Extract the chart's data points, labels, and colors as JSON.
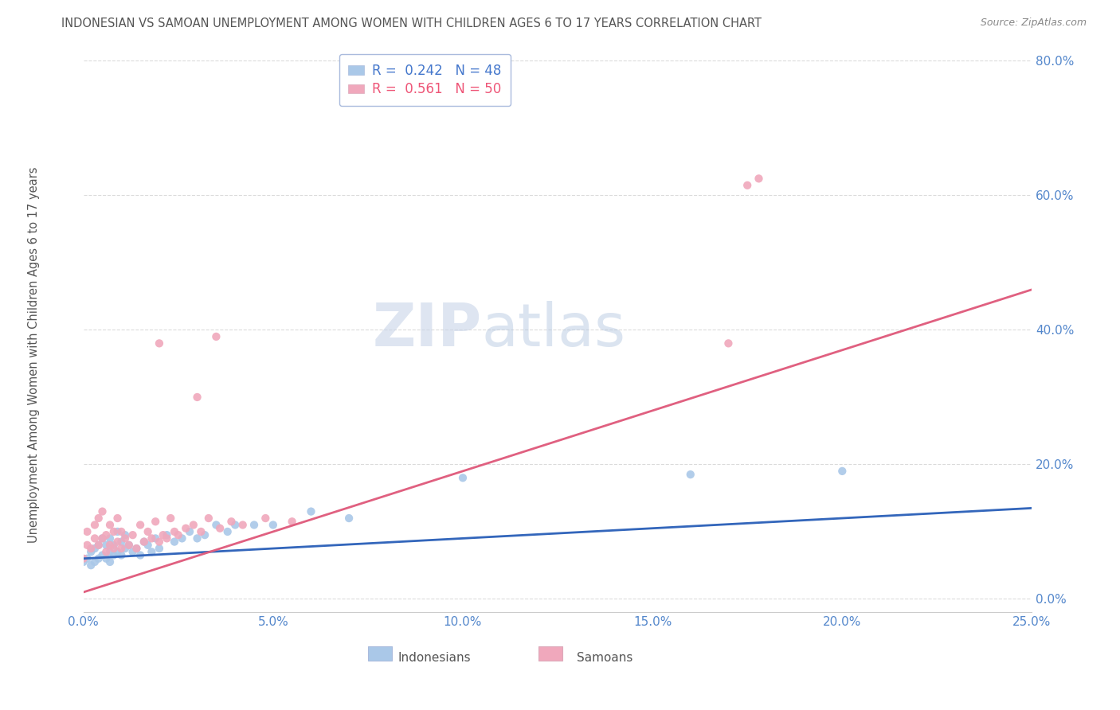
{
  "title": "INDONESIAN VS SAMOAN UNEMPLOYMENT AMONG WOMEN WITH CHILDREN AGES 6 TO 17 YEARS CORRELATION CHART",
  "source": "Source: ZipAtlas.com",
  "ylabel": "Unemployment Among Women with Children Ages 6 to 17 years",
  "xlim": [
    0.0,
    0.25
  ],
  "ylim": [
    -0.02,
    0.82
  ],
  "xticks": [
    0.0,
    0.05,
    0.1,
    0.15,
    0.2,
    0.25
  ],
  "xticklabels": [
    "0.0%",
    "5.0%",
    "10.0%",
    "15.0%",
    "20.0%",
    "25.0%"
  ],
  "yticks": [
    0.0,
    0.2,
    0.4,
    0.6,
    0.8
  ],
  "yticklabels": [
    "0.0%",
    "20.0%",
    "40.0%",
    "60.0%",
    "80.0%"
  ],
  "R_indonesian": 0.242,
  "N_indonesian": 48,
  "R_samoan": 0.561,
  "N_samoan": 50,
  "indonesian_color": "#aac8e8",
  "samoan_color": "#f0a8bc",
  "indonesian_line_color": "#3366bb",
  "samoan_line_color": "#e06080",
  "legend_label_indonesian": "Indonesians",
  "legend_label_samoan": "Samoans",
  "watermark_zip": "ZIP",
  "watermark_atlas": "atlas",
  "background_color": "#ffffff",
  "title_color": "#555555",
  "axis_tick_color": "#5588cc",
  "indonesian_x": [
    0.0,
    0.001,
    0.002,
    0.002,
    0.003,
    0.003,
    0.004,
    0.004,
    0.005,
    0.005,
    0.006,
    0.006,
    0.007,
    0.007,
    0.007,
    0.008,
    0.008,
    0.009,
    0.009,
    0.01,
    0.01,
    0.011,
    0.011,
    0.012,
    0.013,
    0.014,
    0.015,
    0.016,
    0.017,
    0.018,
    0.019,
    0.02,
    0.022,
    0.024,
    0.026,
    0.028,
    0.03,
    0.032,
    0.035,
    0.038,
    0.04,
    0.045,
    0.05,
    0.06,
    0.07,
    0.1,
    0.16,
    0.2
  ],
  "indonesian_y": [
    0.055,
    0.06,
    0.05,
    0.07,
    0.055,
    0.075,
    0.06,
    0.08,
    0.065,
    0.09,
    0.06,
    0.08,
    0.07,
    0.055,
    0.09,
    0.065,
    0.08,
    0.07,
    0.1,
    0.065,
    0.085,
    0.075,
    0.095,
    0.08,
    0.07,
    0.075,
    0.065,
    0.085,
    0.08,
    0.07,
    0.09,
    0.075,
    0.095,
    0.085,
    0.09,
    0.1,
    0.09,
    0.095,
    0.11,
    0.1,
    0.11,
    0.11,
    0.11,
    0.13,
    0.12,
    0.18,
    0.185,
    0.19
  ],
  "samoan_x": [
    0.0,
    0.001,
    0.001,
    0.002,
    0.003,
    0.003,
    0.004,
    0.004,
    0.005,
    0.005,
    0.006,
    0.006,
    0.007,
    0.007,
    0.008,
    0.008,
    0.009,
    0.009,
    0.01,
    0.01,
    0.011,
    0.012,
    0.013,
    0.014,
    0.015,
    0.016,
    0.017,
    0.018,
    0.019,
    0.02,
    0.021,
    0.022,
    0.023,
    0.024,
    0.025,
    0.027,
    0.029,
    0.031,
    0.033,
    0.036,
    0.039,
    0.042,
    0.048,
    0.055,
    0.03,
    0.035,
    0.175,
    0.178,
    0.17,
    0.02
  ],
  "samoan_y": [
    0.06,
    0.08,
    0.1,
    0.075,
    0.09,
    0.11,
    0.08,
    0.12,
    0.09,
    0.13,
    0.07,
    0.095,
    0.08,
    0.11,
    0.075,
    0.1,
    0.085,
    0.12,
    0.075,
    0.1,
    0.09,
    0.08,
    0.095,
    0.075,
    0.11,
    0.085,
    0.1,
    0.09,
    0.115,
    0.085,
    0.095,
    0.09,
    0.12,
    0.1,
    0.095,
    0.105,
    0.11,
    0.1,
    0.12,
    0.105,
    0.115,
    0.11,
    0.12,
    0.115,
    0.3,
    0.39,
    0.615,
    0.625,
    0.38,
    0.38
  ],
  "indo_line_x": [
    0.0,
    0.25
  ],
  "indo_line_y": [
    0.06,
    0.135
  ],
  "samo_line_x": [
    0.0,
    0.25
  ],
  "samo_line_y": [
    0.01,
    0.46
  ]
}
